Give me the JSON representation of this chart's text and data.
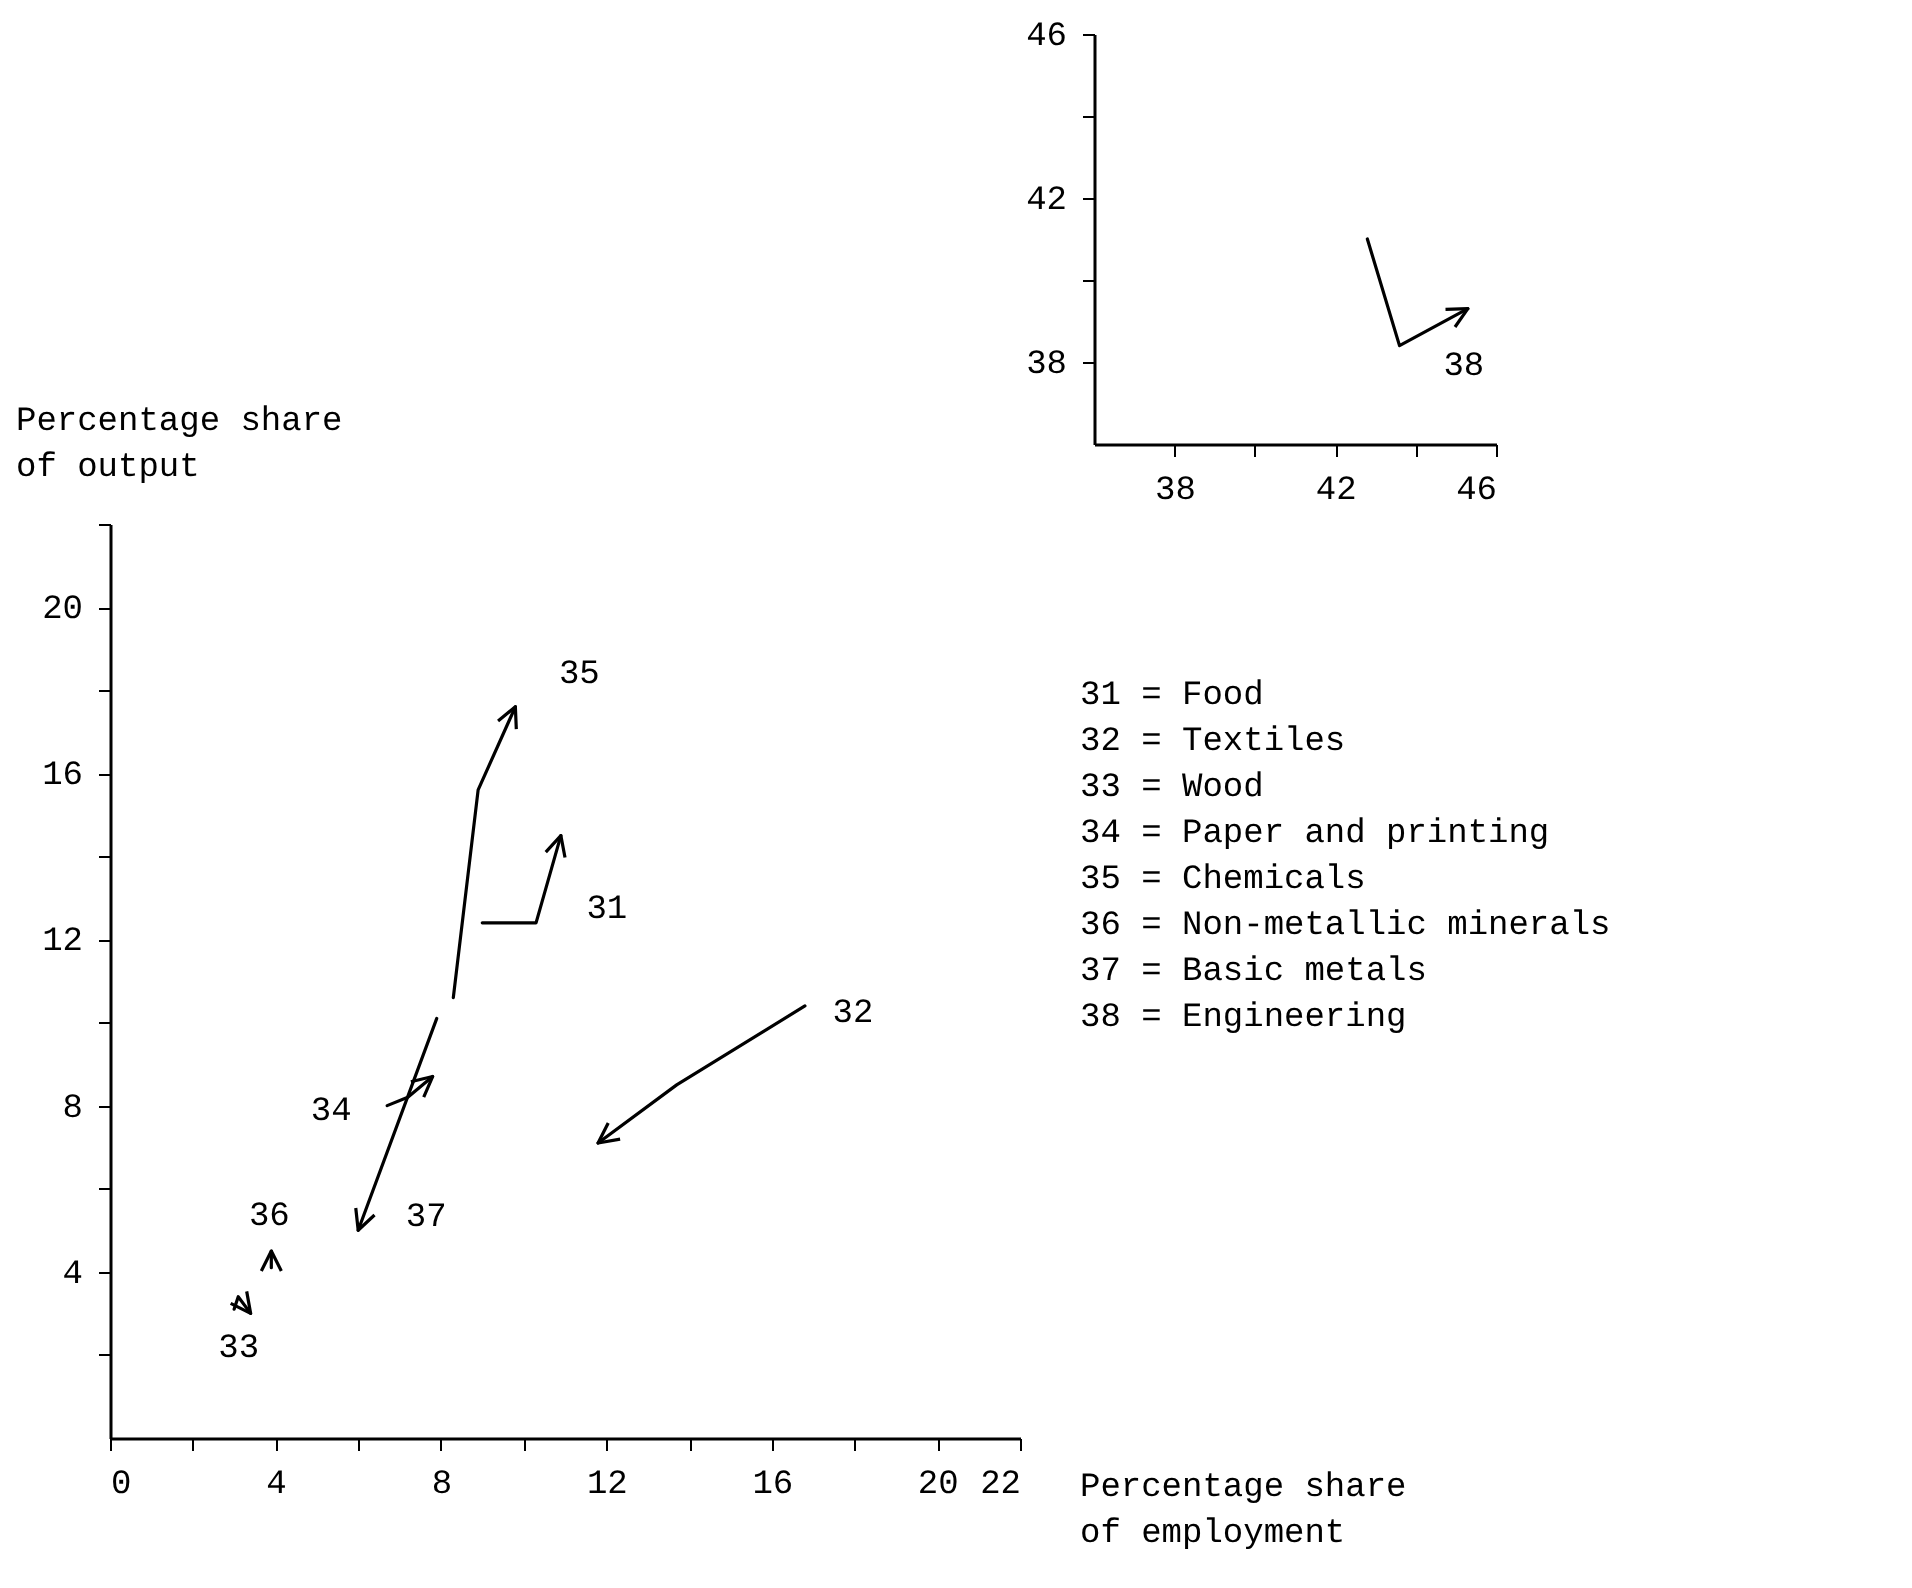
{
  "chart_data": [
    {
      "type": "line",
      "xlim": [
        36,
        46
      ],
      "ylim": [
        36,
        46
      ],
      "xticks": [
        38,
        {
          "value": 40,
          "label": null
        },
        42,
        {
          "value": 44,
          "label": null
        },
        46
      ],
      "yticks": [
        38,
        {
          "value": 40,
          "label": null
        },
        42,
        {
          "value": 44,
          "label": null
        },
        46
      ],
      "series": [
        {
          "name": "38",
          "color": "#000000",
          "x": [
            42.8,
            43.6,
            45.3
          ],
          "values": [
            41.0,
            38.4,
            39.3
          ]
        }
      ]
    },
    {
      "type": "line",
      "xlim": [
        0,
        22
      ],
      "ylim": [
        0,
        22
      ],
      "xlabel": "Percentage share of employment",
      "ylabel": "Percentage share of output",
      "xticks": [
        0,
        {
          "value": 2,
          "label": null
        },
        4,
        {
          "value": 6,
          "label": null
        },
        8,
        {
          "value": 10,
          "label": null
        },
        12,
        {
          "value": 14,
          "label": null
        },
        16,
        {
          "value": 18,
          "label": null
        },
        20,
        22
      ],
      "yticks": [
        {
          "value": 2,
          "label": null
        },
        4,
        {
          "value": 6,
          "label": null
        },
        8,
        {
          "value": 10,
          "label": null
        },
        12,
        {
          "value": 14,
          "label": null
        },
        16,
        {
          "value": 18,
          "label": null
        },
        20,
        {
          "value": 22,
          "label": null
        }
      ],
      "series": [
        {
          "name": "31",
          "color": "#000000",
          "x": [
            9.0,
            10.3,
            10.9
          ],
          "values": [
            12.4,
            12.4,
            14.5
          ]
        },
        {
          "name": "32",
          "color": "#000000",
          "x": [
            16.8,
            13.7,
            11.8
          ],
          "values": [
            10.4,
            8.5,
            7.1
          ]
        },
        {
          "name": "33",
          "color": "#000000",
          "x": [
            3.0,
            3.1,
            3.4
          ],
          "values": [
            3.1,
            3.4,
            3.0
          ]
        },
        {
          "name": "34",
          "color": "#000000",
          "x": [
            6.7,
            7.2,
            7.8
          ],
          "values": [
            8.0,
            8.2,
            8.7
          ]
        },
        {
          "name": "35",
          "color": "#000000",
          "x": [
            8.3,
            8.9,
            9.8
          ],
          "values": [
            10.6,
            15.6,
            17.6
          ]
        },
        {
          "name": "36",
          "color": "#000000",
          "x": [
            3.9,
            3.9
          ],
          "values": [
            4.1,
            4.5
          ]
        },
        {
          "name": "37",
          "color": "#000000",
          "x": [
            7.9,
            6.0
          ],
          "values": [
            10.1,
            5.0
          ]
        }
      ],
      "annotations": [
        "31 = Food",
        "32 = Textiles",
        "33 = Wood",
        "34 = Paper and printing",
        "35 = Chemicals",
        "36 = Non-metallic minerals",
        "37 = Basic metals",
        "38 = Engineering"
      ]
    }
  ]
}
